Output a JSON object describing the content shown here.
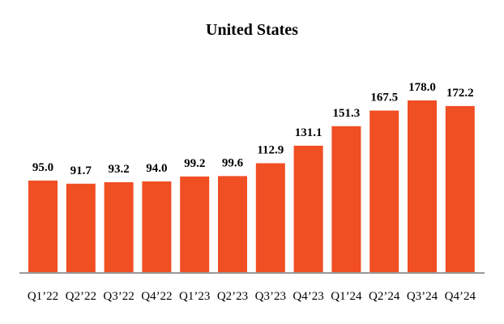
{
  "chart_data": {
    "type": "bar",
    "title": "United States",
    "categories": [
      "Q1’22",
      "Q2’22",
      "Q3’22",
      "Q4’22",
      "Q1’23",
      "Q2’23",
      "Q3’23",
      "Q4’23",
      "Q1’24",
      "Q2’24",
      "Q3’24",
      "Q4’24"
    ],
    "values": [
      95.0,
      91.7,
      93.2,
      94.0,
      99.2,
      99.6,
      112.9,
      131.1,
      151.3,
      167.5,
      178.0,
      172.2
    ],
    "value_labels": [
      "95.0",
      "91.7",
      "93.2",
      "94.0",
      "99.2",
      "99.6",
      "112.9",
      "131.1",
      "151.3",
      "167.5",
      "178.0",
      "172.2"
    ],
    "bar_color": "#F04E23",
    "axis_color": "#999999",
    "ylim": [
      0,
      178.0
    ],
    "grid": false,
    "legend": "none"
  }
}
